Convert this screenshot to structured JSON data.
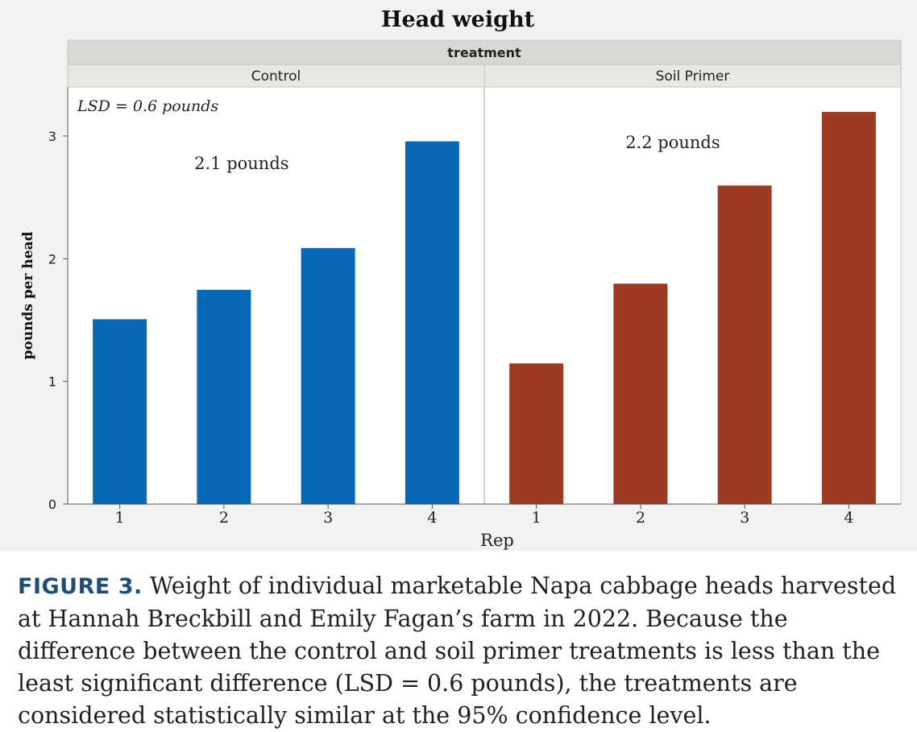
{
  "chart_data": {
    "type": "bar",
    "title": "Head weight",
    "facet_variable": "treatment",
    "xlabel": "Rep",
    "ylabel": "pounds per head",
    "ylim": [
      0,
      3.4
    ],
    "yticks": [
      0,
      1,
      2,
      3
    ],
    "grid": false,
    "legend": "none",
    "annotation": "LSD = 0.6 pounds",
    "panels": [
      {
        "name": "Control",
        "categories": [
          "1",
          "2",
          "3",
          "4"
        ],
        "values": [
          1.51,
          1.75,
          2.09,
          2.96
        ],
        "mean_label": "2.1 pounds",
        "color": "#0868b5"
      },
      {
        "name": "Soil Primer",
        "categories": [
          "1",
          "2",
          "3",
          "4"
        ],
        "values": [
          1.15,
          1.8,
          2.6,
          3.2
        ],
        "mean_label": "2.2 pounds",
        "color": "#9c3a24"
      }
    ]
  },
  "caption": {
    "label": "FIGURE 3.",
    "text": " Weight of individual marketable Napa cabbage heads harvested at Hannah Breckbill and Emily Fagan’s farm in 2022. Because the difference between the control and soil primer treatments is less than the least significant difference (LSD = 0.6 pounds), the treatments are considered statistically similar at the 95% confidence level."
  }
}
